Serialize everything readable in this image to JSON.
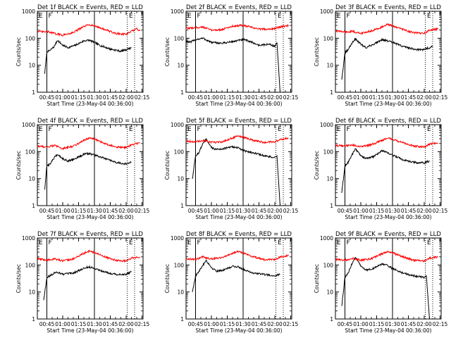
{
  "figure": {
    "background": "#ffffff",
    "colors": {
      "events": "#000000",
      "lld": "#ff0000"
    },
    "panel_titles": [
      "Det 1f BLACK = Events, RED = LLD",
      "Det 2f BLACK = Events, RED = LLD",
      "Det 3f BLACK = Events, RED = LLD",
      "Det 4f BLACK = Events, RED = LLD",
      "Det 5f BLACK = Events, RED = LLD",
      "Det 6f BLACK = Events, RED = LLD",
      "Det 7f BLACK = Events, RED = LLD",
      "Det 8f BLACK = Events, RED = LLD",
      "Det 9f BLACK = Events, RED = LLD"
    ]
  },
  "chart_data": [
    {
      "type": "line",
      "title": "Det 1f BLACK = Events, RED = LLD",
      "xlabel": "Start Time (23-May-04 00:36:00)",
      "ylabel": "Counts/sec",
      "x_ticks": [
        "00:45",
        "01:00",
        "01:15",
        "01:30",
        "01:45",
        "02:00",
        "02:15"
      ],
      "y_ticks": [
        "1",
        "10",
        "100",
        "1000"
      ],
      "y_scale": "log",
      "ylim": [
        1,
        1000
      ],
      "markers": [
        "E",
        "F",
        "E"
      ],
      "series": [
        {
          "name": "Events",
          "color": "#000000",
          "x": [
            "00:43",
            "00:45",
            "00:48",
            "00:52",
            "00:55",
            "01:00",
            "01:05",
            "01:12",
            "01:20",
            "01:25",
            "01:30",
            "01:35",
            "01:45",
            "01:55",
            "02:00",
            "02:05"
          ],
          "values": [
            5,
            32,
            35,
            50,
            85,
            55,
            45,
            55,
            80,
            85,
            70,
            55,
            40,
            33,
            38,
            45
          ]
        },
        {
          "name": "LLD",
          "color": "#ff0000",
          "x": [
            "00:36",
            "00:43",
            "00:45",
            "00:52",
            "01:00",
            "01:10",
            "01:20",
            "01:25",
            "01:30",
            "01:40",
            "01:50",
            "02:00",
            "02:05",
            "02:10",
            "02:13"
          ],
          "values": [
            180,
            170,
            180,
            150,
            130,
            165,
            270,
            320,
            290,
            210,
            150,
            140,
            180,
            220,
            190
          ]
        }
      ]
    },
    {
      "type": "line",
      "title": "Det 2f BLACK = Events, RED = LLD",
      "xlabel": "Start Time (23-May-04 00:36:00)",
      "ylabel": "Counts/sec",
      "x_ticks": [
        "00:45",
        "01:00",
        "01:15",
        "01:30",
        "01:45",
        "02:00",
        "02:15"
      ],
      "y_ticks": [
        "1",
        "10",
        "100",
        "1000"
      ],
      "y_scale": "log",
      "ylim": [
        1,
        1000
      ],
      "markers": [
        "E",
        "F",
        "E"
      ],
      "series": [
        {
          "name": "Events",
          "color": "#000000",
          "x": [
            "00:36",
            "00:40",
            "00:45",
            "00:52",
            "01:00",
            "01:10",
            "01:20",
            "01:30",
            "01:35",
            "01:45",
            "01:55",
            "02:00",
            "02:02",
            "02:05"
          ],
          "values": [
            80,
            70,
            90,
            100,
            70,
            65,
            75,
            90,
            80,
            55,
            60,
            50,
            70,
            1
          ]
        },
        {
          "name": "LLD",
          "color": "#ff0000",
          "x": [
            "00:36",
            "00:45",
            "00:52",
            "01:00",
            "01:10",
            "01:20",
            "01:28",
            "01:35",
            "01:45",
            "01:55",
            "02:00",
            "02:05",
            "02:13"
          ],
          "values": [
            230,
            250,
            260,
            200,
            210,
            280,
            300,
            270,
            220,
            220,
            230,
            260,
            300
          ]
        }
      ]
    },
    {
      "type": "line",
      "title": "Det 3f BLACK = Events, RED = LLD",
      "xlabel": "Start Time (23-May-04 00:36:00)",
      "ylabel": "Counts/sec",
      "x_ticks": [
        "00:45",
        "01:00",
        "01:15",
        "01:30",
        "01:45",
        "02:00",
        "02:15"
      ],
      "y_ticks": [
        "1",
        "10",
        "100",
        "1000"
      ],
      "y_scale": "log",
      "ylim": [
        1,
        1000
      ],
      "markers": [
        "E",
        "F",
        "E"
      ],
      "series": [
        {
          "name": "Events",
          "color": "#000000",
          "x": [
            "00:42",
            "00:45",
            "00:48",
            "00:52",
            "00:55",
            "01:00",
            "01:05",
            "01:12",
            "01:20",
            "01:25",
            "01:30",
            "01:40",
            "01:50",
            "01:58",
            "02:05",
            "02:08"
          ],
          "values": [
            3,
            28,
            38,
            70,
            95,
            60,
            45,
            60,
            90,
            80,
            70,
            50,
            40,
            37,
            45,
            50
          ]
        },
        {
          "name": "LLD",
          "color": "#ff0000",
          "x": [
            "00:36",
            "00:45",
            "00:52",
            "01:00",
            "01:10",
            "01:20",
            "01:25",
            "01:30",
            "01:40",
            "01:50",
            "02:00",
            "02:05",
            "02:13"
          ],
          "values": [
            190,
            170,
            180,
            150,
            190,
            260,
            320,
            290,
            210,
            160,
            150,
            200,
            220
          ]
        }
      ]
    },
    {
      "type": "line",
      "title": "Det 4f BLACK = Events, RED = LLD",
      "xlabel": "Start Time (23-May-04 00:36:00)",
      "ylabel": "Counts/sec",
      "x_ticks": [
        "00:45",
        "01:00",
        "01:15",
        "01:30",
        "01:45",
        "02:00",
        "02:15"
      ],
      "y_ticks": [
        "1",
        "10",
        "100",
        "1000"
      ],
      "y_scale": "log",
      "ylim": [
        1,
        1000
      ],
      "markers": [
        "E",
        "F",
        "E"
      ],
      "series": [
        {
          "name": "Events",
          "color": "#000000",
          "x": [
            "00:43",
            "00:45",
            "00:48",
            "00:52",
            "00:55",
            "01:00",
            "01:05",
            "01:12",
            "01:20",
            "01:25",
            "01:30",
            "01:40",
            "01:50",
            "02:00",
            "02:05"
          ],
          "values": [
            4,
            30,
            35,
            60,
            80,
            55,
            45,
            55,
            80,
            85,
            75,
            55,
            40,
            35,
            40
          ]
        },
        {
          "name": "LLD",
          "color": "#ff0000",
          "x": [
            "00:36",
            "00:45",
            "00:52",
            "01:00",
            "01:10",
            "01:20",
            "01:25",
            "01:30",
            "01:40",
            "01:50",
            "02:00",
            "02:05",
            "02:13"
          ],
          "values": [
            160,
            150,
            170,
            130,
            160,
            260,
            320,
            290,
            200,
            150,
            140,
            180,
            210
          ]
        }
      ]
    },
    {
      "type": "line",
      "title": "Det 5f BLACK = Events, RED = LLD",
      "xlabel": "Start Time (23-May-04 00:36:00)",
      "ylabel": "Counts/sec",
      "x_ticks": [
        "00:45",
        "01:00",
        "01:15",
        "01:30",
        "01:45",
        "02:00",
        "02:15"
      ],
      "y_ticks": [
        "1",
        "10",
        "100",
        "1000"
      ],
      "y_scale": "log",
      "ylim": [
        1,
        1000
      ],
      "markers": [
        "E",
        "F",
        "E"
      ],
      "series": [
        {
          "name": "Events",
          "color": "#000000",
          "x": [
            "00:42",
            "00:45",
            "00:48",
            "00:52",
            "00:55",
            "01:00",
            "01:05",
            "01:12",
            "01:20",
            "01:25",
            "01:30",
            "01:40",
            "01:50",
            "02:00",
            "02:02",
            "02:05"
          ],
          "values": [
            10,
            70,
            90,
            200,
            280,
            140,
            120,
            130,
            150,
            140,
            110,
            90,
            70,
            60,
            70,
            1
          ]
        },
        {
          "name": "LLD",
          "color": "#ff0000",
          "x": [
            "00:36",
            "00:45",
            "00:52",
            "01:00",
            "01:10",
            "01:20",
            "01:25",
            "01:30",
            "01:40",
            "01:50",
            "02:00",
            "02:05",
            "02:13"
          ],
          "values": [
            250,
            230,
            260,
            220,
            230,
            320,
            380,
            340,
            260,
            220,
            230,
            280,
            320
          ]
        }
      ]
    },
    {
      "type": "line",
      "title": "Det 6f BLACK = Events, RED = LLD",
      "xlabel": "Start Time (23-May-04 00:36:00)",
      "ylabel": "Counts/sec",
      "x_ticks": [
        "00:45",
        "01:00",
        "01:15",
        "01:30",
        "01:45",
        "02:00",
        "02:15"
      ],
      "y_ticks": [
        "1",
        "10",
        "100",
        "1000"
      ],
      "y_scale": "log",
      "ylim": [
        1,
        1000
      ],
      "markers": [
        "E",
        "F",
        "E"
      ],
      "series": [
        {
          "name": "Events",
          "color": "#000000",
          "x": [
            "00:42",
            "00:45",
            "00:48",
            "00:52",
            "00:55",
            "01:00",
            "01:05",
            "01:12",
            "01:20",
            "01:25",
            "01:30",
            "01:40",
            "01:50",
            "02:00",
            "02:05"
          ],
          "values": [
            3,
            30,
            40,
            80,
            130,
            70,
            55,
            65,
            110,
            90,
            75,
            50,
            40,
            38,
            45
          ]
        },
        {
          "name": "LLD",
          "color": "#ff0000",
          "x": [
            "00:36",
            "00:45",
            "00:52",
            "01:00",
            "01:10",
            "01:20",
            "01:25",
            "01:30",
            "01:40",
            "01:50",
            "02:00",
            "02:05",
            "02:13"
          ],
          "values": [
            170,
            160,
            180,
            150,
            180,
            260,
            320,
            290,
            210,
            160,
            150,
            190,
            210
          ]
        }
      ]
    },
    {
      "type": "line",
      "title": "Det 7f BLACK = Events, RED = LLD",
      "xlabel": "Start Time (23-May-04 00:36:00)",
      "ylabel": "Counts/sec",
      "x_ticks": [
        "00:45",
        "01:00",
        "01:15",
        "01:30",
        "01:45",
        "02:00",
        "02:15"
      ],
      "y_ticks": [
        "1",
        "10",
        "100",
        "1000"
      ],
      "y_scale": "log",
      "ylim": [
        1,
        1000
      ],
      "markers": [
        "E",
        "F",
        "E"
      ],
      "series": [
        {
          "name": "Events",
          "color": "#000000",
          "x": [
            "00:42",
            "00:45",
            "00:48",
            "00:52",
            "00:55",
            "01:00",
            "01:10",
            "01:20",
            "01:25",
            "01:30",
            "01:40",
            "01:50",
            "02:00",
            "02:05"
          ],
          "values": [
            5,
            35,
            40,
            50,
            55,
            45,
            50,
            75,
            85,
            75,
            55,
            45,
            45,
            55
          ]
        },
        {
          "name": "LLD",
          "color": "#ff0000",
          "x": [
            "00:36",
            "00:45",
            "00:52",
            "01:00",
            "01:10",
            "01:20",
            "01:25",
            "01:30",
            "01:40",
            "01:50",
            "02:00",
            "02:05",
            "02:13"
          ],
          "values": [
            170,
            150,
            170,
            140,
            170,
            270,
            330,
            290,
            200,
            150,
            140,
            180,
            200
          ]
        }
      ]
    },
    {
      "type": "line",
      "title": "Det 8f BLACK = Events, RED = LLD",
      "xlabel": "Start Time (23-May-04 00:36:00)",
      "ylabel": "Counts/sec",
      "x_ticks": [
        "00:45",
        "01:00",
        "01:15",
        "01:30",
        "01:45",
        "02:00",
        "02:15"
      ],
      "y_ticks": [
        "1",
        "10",
        "100",
        "1000"
      ],
      "y_scale": "log",
      "ylim": [
        1,
        1000
      ],
      "markers": [
        "E",
        "F",
        "E"
      ],
      "series": [
        {
          "name": "Events",
          "color": "#000000",
          "x": [
            "00:42",
            "00:45",
            "00:48",
            "00:52",
            "00:55",
            "01:00",
            "01:05",
            "01:12",
            "01:20",
            "01:25",
            "01:30",
            "01:40",
            "01:50",
            "02:00",
            "02:05"
          ],
          "values": [
            10,
            40,
            55,
            100,
            150,
            80,
            60,
            65,
            90,
            85,
            70,
            50,
            45,
            40,
            45
          ]
        },
        {
          "name": "LLD",
          "color": "#ff0000",
          "x": [
            "00:36",
            "00:45",
            "00:52",
            "01:00",
            "01:10",
            "01:20",
            "01:25",
            "01:30",
            "01:40",
            "01:50",
            "02:00",
            "02:05",
            "02:13"
          ],
          "values": [
            170,
            160,
            200,
            170,
            190,
            270,
            320,
            280,
            200,
            160,
            160,
            200,
            220
          ]
        }
      ]
    },
    {
      "type": "line",
      "title": "Det 9f BLACK = Events, RED = LLD",
      "xlabel": "Start Time (23-May-04 00:36:00)",
      "ylabel": "Counts/sec",
      "x_ticks": [
        "00:45",
        "01:00",
        "01:15",
        "01:30",
        "01:45",
        "02:00",
        "02:15"
      ],
      "y_ticks": [
        "1",
        "10",
        "100",
        "1000"
      ],
      "y_scale": "log",
      "ylim": [
        1,
        1000
      ],
      "markers": [
        "E",
        "F",
        "E"
      ],
      "series": [
        {
          "name": "Events",
          "color": "#000000",
          "x": [
            "00:42",
            "00:45",
            "00:48",
            "00:52",
            "00:55",
            "01:00",
            "01:05",
            "01:12",
            "01:20",
            "01:25",
            "01:30",
            "01:40",
            "01:50",
            "02:00",
            "02:02",
            "02:05"
          ],
          "values": [
            3,
            35,
            50,
            120,
            200,
            90,
            65,
            75,
            110,
            95,
            75,
            50,
            40,
            35,
            40,
            1
          ]
        },
        {
          "name": "LLD",
          "color": "#ff0000",
          "x": [
            "00:36",
            "00:45",
            "00:52",
            "01:00",
            "01:10",
            "01:20",
            "01:25",
            "01:30",
            "01:40",
            "01:50",
            "02:00",
            "02:05",
            "02:13"
          ],
          "values": [
            160,
            150,
            180,
            150,
            170,
            260,
            310,
            280,
            200,
            150,
            140,
            180,
            200
          ]
        }
      ]
    }
  ]
}
